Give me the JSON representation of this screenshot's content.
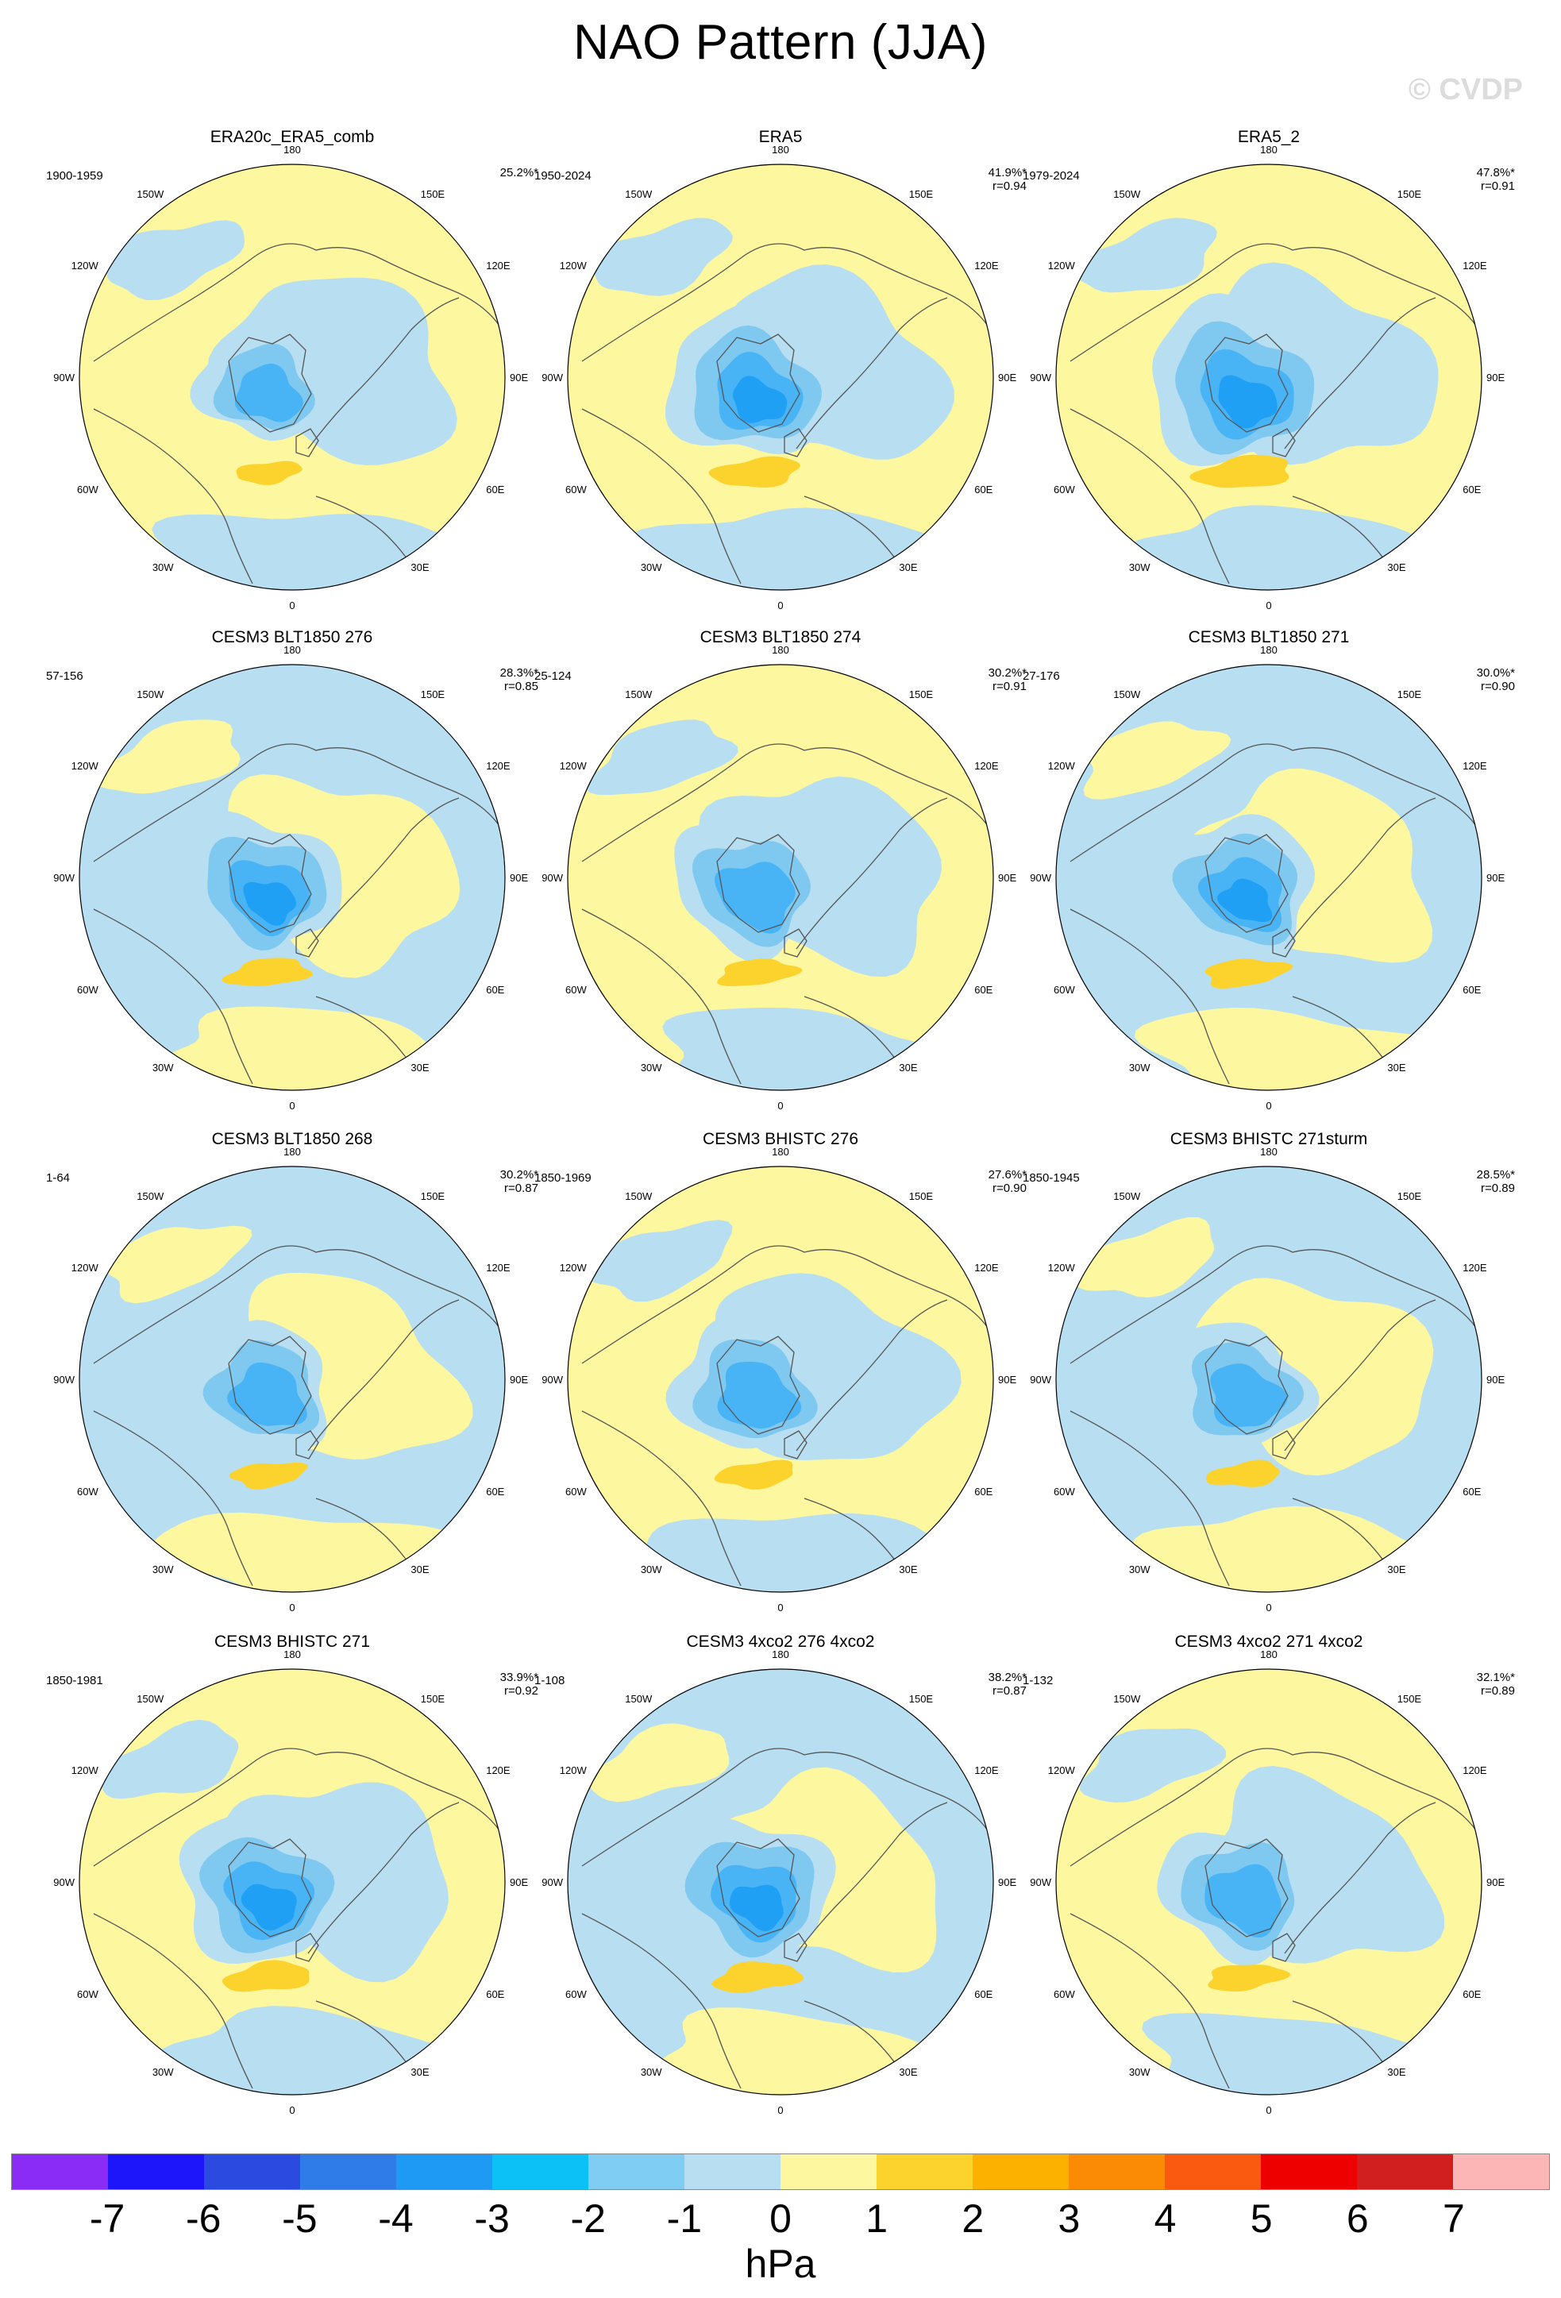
{
  "title": "NAO Pattern (JJA)",
  "watermark": "© CVDP",
  "colors": {
    "pos1": "#fdf7a0",
    "pos2": "#fcd22d",
    "neg1": "#b8dff1",
    "neg2": "#7fc8f0",
    "neg3": "#49b4f5",
    "neg4": "#1fa0f5",
    "coast": "#555555"
  },
  "longitude_labels": {
    "top": "180",
    "bottom": "0",
    "left": "90W",
    "right": "90E",
    "upper_left_1": "150W",
    "upper_left_2": "120W",
    "lower_left_1": "60W",
    "lower_left_2": "30W",
    "upper_right_1": "150E",
    "upper_right_2": "120E",
    "lower_right_1": "60E",
    "lower_right_2": "30E"
  },
  "panels": [
    {
      "title": "ERA20c_ERA5_comb",
      "years": "1900-1959",
      "pct": "25.2%*",
      "r": "",
      "bg": "pos1",
      "strength": 0.75
    },
    {
      "title": "ERA5",
      "years": "1950-2024",
      "pct": "41.9%*",
      "r": "r=0.94",
      "bg": "pos1",
      "strength": 1.0
    },
    {
      "title": "ERA5_2",
      "years": "1979-2024",
      "pct": "47.8%*",
      "r": "r=0.91",
      "bg": "pos1",
      "strength": 1.1
    },
    {
      "title": "CESM3 BLT1850 276",
      "years": "57-156",
      "pct": "28.3%*",
      "r": "r=0.85",
      "bg": "neg1",
      "strength": 0.95
    },
    {
      "title": "CESM3 BLT1850 274",
      "years": "25-124",
      "pct": "30.2%*",
      "r": "r=0.91",
      "bg": "pos1",
      "strength": 0.9
    },
    {
      "title": "CESM3 BLT1850 271",
      "years": "27-176",
      "pct": "30.0%*",
      "r": "r=0.90",
      "bg": "neg1",
      "strength": 0.95
    },
    {
      "title": "CESM3 BLT1850 268",
      "years": "1-64",
      "pct": "30.2%*",
      "r": "r=0.87",
      "bg": "neg1",
      "strength": 0.85
    },
    {
      "title": "CESM3 BHISTC 276",
      "years": "1850-1969",
      "pct": "27.6%*",
      "r": "r=0.90",
      "bg": "pos1",
      "strength": 0.9
    },
    {
      "title": "CESM3 BHISTC 271sturm",
      "years": "1850-1945",
      "pct": "28.5%*",
      "r": "r=0.89",
      "bg": "neg1",
      "strength": 0.85
    },
    {
      "title": "CESM3 BHISTC 271",
      "years": "1850-1981",
      "pct": "33.9%*",
      "r": "r=0.92",
      "bg": "pos1",
      "strength": 1.0
    },
    {
      "title": "CESM3 4xco2 276 4xco2",
      "years": "1-108",
      "pct": "38.2%*",
      "r": "r=0.87",
      "bg": "neg1",
      "strength": 1.0
    },
    {
      "title": "CESM3 4xco2 271 4xco2",
      "years": "1-132",
      "pct": "32.1%*",
      "r": "r=0.89",
      "bg": "pos1",
      "strength": 0.9
    }
  ],
  "colorbar": {
    "colors": [
      "#8a2cf5",
      "#1e16fb",
      "#2a4ae0",
      "#2f7ce8",
      "#1e9af5",
      "#0cc1f6",
      "#7fcdf3",
      "#b8dff1",
      "#fdf7a0",
      "#fcd22d",
      "#fcb000",
      "#fb8a05",
      "#fa5a10",
      "#ee0000",
      "#d11f1f",
      "#fdb6b6"
    ],
    "ticks": [
      "-7",
      "-6",
      "-5",
      "-4",
      "-3",
      "-2",
      "-1",
      "0",
      "1",
      "2",
      "3",
      "4",
      "5",
      "6",
      "7"
    ],
    "unit": "hPa"
  }
}
